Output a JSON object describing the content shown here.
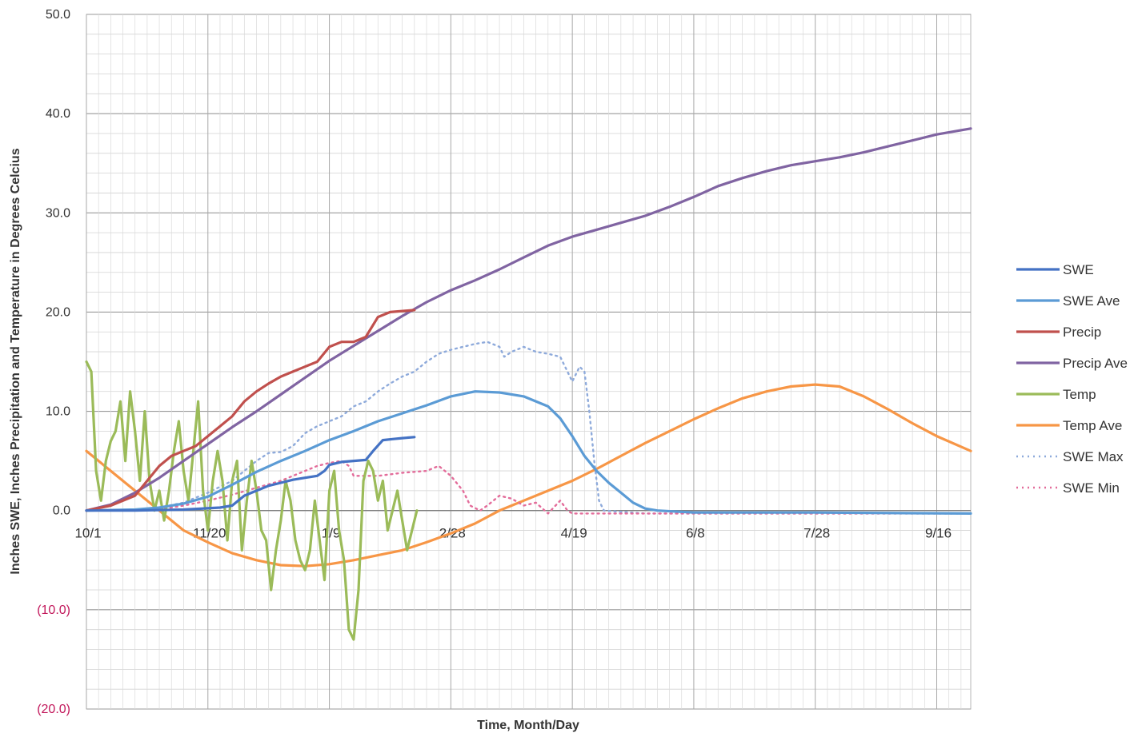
{
  "chart_data": {
    "type": "line",
    "title": "",
    "xlabel": "Time, Month/Day",
    "ylabel": "Inches SWE, Inches Precipitation and Temperature in Degrees Celcius",
    "x_domain": [
      0,
      364
    ],
    "ylim": [
      -20,
      50
    ],
    "y_ticks": [
      {
        "value": 50,
        "label": "50.0",
        "negative": false
      },
      {
        "value": 40,
        "label": "40.0",
        "negative": false
      },
      {
        "value": 30,
        "label": "30.0",
        "negative": false
      },
      {
        "value": 20,
        "label": "20.0",
        "negative": false
      },
      {
        "value": 10,
        "label": "10.0",
        "negative": false
      },
      {
        "value": 0,
        "label": "0.0",
        "negative": false
      },
      {
        "value": -10,
        "label": "(10.0)",
        "negative": true
      },
      {
        "value": -20,
        "label": "(20.0)",
        "negative": true
      }
    ],
    "x_ticks": [
      {
        "day": 0,
        "label": "10/1"
      },
      {
        "day": 50,
        "label": "11/20"
      },
      {
        "day": 100,
        "label": "1/9"
      },
      {
        "day": 150,
        "label": "2/28"
      },
      {
        "day": 200,
        "label": "4/19"
      },
      {
        "day": 250,
        "label": "6/8"
      },
      {
        "day": 300,
        "label": "7/28"
      },
      {
        "day": 350,
        "label": "9/16"
      }
    ],
    "grid": true,
    "legend_position": "right",
    "series": [
      {
        "name": "SWE",
        "color": "#4472c4",
        "dashed": false,
        "points": [
          [
            0,
            0
          ],
          [
            20,
            0
          ],
          [
            40,
            0.1
          ],
          [
            55,
            0.3
          ],
          [
            60,
            0.5
          ],
          [
            65,
            1.5
          ],
          [
            70,
            2.0
          ],
          [
            75,
            2.5
          ],
          [
            80,
            2.8
          ],
          [
            85,
            3.1
          ],
          [
            90,
            3.3
          ],
          [
            95,
            3.5
          ],
          [
            98,
            4.0
          ],
          [
            100,
            4.6
          ],
          [
            105,
            4.9
          ],
          [
            110,
            5.0
          ],
          [
            115,
            5.1
          ],
          [
            118,
            6.0
          ],
          [
            122,
            7.1
          ],
          [
            126,
            7.2
          ],
          [
            130,
            7.3
          ],
          [
            135,
            7.4
          ]
        ]
      },
      {
        "name": "SWE Ave",
        "color": "#5b9bd5",
        "dashed": false,
        "points": [
          [
            0,
            0
          ],
          [
            20,
            0.1
          ],
          [
            30,
            0.3
          ],
          [
            40,
            0.7
          ],
          [
            50,
            1.4
          ],
          [
            60,
            2.6
          ],
          [
            70,
            3.9
          ],
          [
            80,
            5.0
          ],
          [
            90,
            6.0
          ],
          [
            100,
            7.1
          ],
          [
            110,
            8.0
          ],
          [
            120,
            9.0
          ],
          [
            130,
            9.8
          ],
          [
            140,
            10.6
          ],
          [
            150,
            11.5
          ],
          [
            160,
            12.0
          ],
          [
            170,
            11.9
          ],
          [
            180,
            11.5
          ],
          [
            190,
            10.5
          ],
          [
            195,
            9.3
          ],
          [
            200,
            7.5
          ],
          [
            205,
            5.5
          ],
          [
            210,
            4.0
          ],
          [
            215,
            2.8
          ],
          [
            220,
            1.8
          ],
          [
            225,
            0.8
          ],
          [
            230,
            0.2
          ],
          [
            235,
            0
          ],
          [
            250,
            -0.2
          ],
          [
            300,
            -0.2
          ],
          [
            364,
            -0.3
          ]
        ]
      },
      {
        "name": "Precip",
        "color": "#c0504d",
        "dashed": false,
        "points": [
          [
            0,
            0
          ],
          [
            10,
            0.5
          ],
          [
            20,
            1.5
          ],
          [
            30,
            4.5
          ],
          [
            35,
            5.5
          ],
          [
            40,
            6.0
          ],
          [
            45,
            6.5
          ],
          [
            50,
            7.5
          ],
          [
            55,
            8.5
          ],
          [
            60,
            9.5
          ],
          [
            65,
            11.0
          ],
          [
            70,
            12.0
          ],
          [
            75,
            12.8
          ],
          [
            80,
            13.5
          ],
          [
            85,
            14.0
          ],
          [
            90,
            14.5
          ],
          [
            95,
            15.0
          ],
          [
            100,
            16.5
          ],
          [
            105,
            17.0
          ],
          [
            110,
            17.0
          ],
          [
            115,
            17.5
          ],
          [
            120,
            19.5
          ],
          [
            125,
            20.0
          ],
          [
            135,
            20.2
          ]
        ]
      },
      {
        "name": "Precip Ave",
        "color": "#8064a2",
        "dashed": false,
        "points": [
          [
            0,
            0
          ],
          [
            10,
            0.6
          ],
          [
            20,
            1.8
          ],
          [
            30,
            3.3
          ],
          [
            40,
            5.0
          ],
          [
            50,
            6.7
          ],
          [
            60,
            8.4
          ],
          [
            70,
            10.0
          ],
          [
            80,
            11.7
          ],
          [
            90,
            13.4
          ],
          [
            100,
            15.1
          ],
          [
            110,
            16.6
          ],
          [
            120,
            18.1
          ],
          [
            130,
            19.6
          ],
          [
            140,
            21.0
          ],
          [
            150,
            22.2
          ],
          [
            160,
            23.2
          ],
          [
            170,
            24.3
          ],
          [
            180,
            25.5
          ],
          [
            190,
            26.7
          ],
          [
            200,
            27.6
          ],
          [
            210,
            28.3
          ],
          [
            220,
            29.0
          ],
          [
            230,
            29.7
          ],
          [
            240,
            30.6
          ],
          [
            250,
            31.6
          ],
          [
            260,
            32.7
          ],
          [
            270,
            33.5
          ],
          [
            280,
            34.2
          ],
          [
            290,
            34.8
          ],
          [
            300,
            35.2
          ],
          [
            310,
            35.6
          ],
          [
            320,
            36.1
          ],
          [
            330,
            36.7
          ],
          [
            340,
            37.3
          ],
          [
            350,
            37.9
          ],
          [
            364,
            38.5
          ]
        ]
      },
      {
        "name": "Temp",
        "color": "#9bbb59",
        "dashed": false,
        "points": [
          [
            0,
            15
          ],
          [
            2,
            14
          ],
          [
            4,
            4
          ],
          [
            6,
            1
          ],
          [
            8,
            5
          ],
          [
            10,
            7
          ],
          [
            12,
            8
          ],
          [
            14,
            11
          ],
          [
            16,
            5
          ],
          [
            18,
            12
          ],
          [
            20,
            8
          ],
          [
            22,
            3
          ],
          [
            24,
            10
          ],
          [
            26,
            3
          ],
          [
            28,
            0
          ],
          [
            30,
            2
          ],
          [
            32,
            -1
          ],
          [
            34,
            2
          ],
          [
            36,
            6
          ],
          [
            38,
            9
          ],
          [
            40,
            4
          ],
          [
            42,
            1
          ],
          [
            44,
            6
          ],
          [
            46,
            11
          ],
          [
            48,
            2
          ],
          [
            50,
            -2
          ],
          [
            52,
            3
          ],
          [
            54,
            6
          ],
          [
            56,
            3
          ],
          [
            58,
            -3
          ],
          [
            60,
            3
          ],
          [
            62,
            5
          ],
          [
            64,
            -4
          ],
          [
            66,
            1
          ],
          [
            68,
            5
          ],
          [
            70,
            2
          ],
          [
            72,
            -2
          ],
          [
            74,
            -3
          ],
          [
            76,
            -8
          ],
          [
            78,
            -4
          ],
          [
            80,
            -1
          ],
          [
            82,
            3
          ],
          [
            84,
            1
          ],
          [
            86,
            -3
          ],
          [
            88,
            -5
          ],
          [
            90,
            -6
          ],
          [
            92,
            -4
          ],
          [
            94,
            1
          ],
          [
            96,
            -3
          ],
          [
            98,
            -7
          ],
          [
            100,
            2
          ],
          [
            102,
            4
          ],
          [
            104,
            -2
          ],
          [
            106,
            -5
          ],
          [
            108,
            -12
          ],
          [
            110,
            -13
          ],
          [
            112,
            -8
          ],
          [
            114,
            3
          ],
          [
            116,
            5
          ],
          [
            118,
            4
          ],
          [
            120,
            1
          ],
          [
            122,
            3
          ],
          [
            124,
            -2
          ],
          [
            126,
            0
          ],
          [
            128,
            2
          ],
          [
            130,
            -1
          ],
          [
            132,
            -4
          ],
          [
            134,
            -2
          ],
          [
            136,
            0
          ]
        ]
      },
      {
        "name": "Temp Ave",
        "color": "#f79646",
        "dashed": false,
        "points": [
          [
            0,
            6
          ],
          [
            10,
            4
          ],
          [
            20,
            2
          ],
          [
            30,
            0
          ],
          [
            40,
            -2
          ],
          [
            50,
            -3.2
          ],
          [
            60,
            -4.3
          ],
          [
            70,
            -5.0
          ],
          [
            80,
            -5.5
          ],
          [
            90,
            -5.6
          ],
          [
            100,
            -5.4
          ],
          [
            110,
            -5.0
          ],
          [
            120,
            -4.5
          ],
          [
            130,
            -4.0
          ],
          [
            140,
            -3.2
          ],
          [
            150,
            -2.3
          ],
          [
            160,
            -1.3
          ],
          [
            170,
            0.0
          ],
          [
            180,
            1.0
          ],
          [
            190,
            2.0
          ],
          [
            200,
            3.0
          ],
          [
            210,
            4.2
          ],
          [
            220,
            5.5
          ],
          [
            230,
            6.8
          ],
          [
            240,
            8.0
          ],
          [
            250,
            9.2
          ],
          [
            260,
            10.3
          ],
          [
            270,
            11.3
          ],
          [
            280,
            12.0
          ],
          [
            290,
            12.5
          ],
          [
            300,
            12.7
          ],
          [
            310,
            12.5
          ],
          [
            320,
            11.5
          ],
          [
            330,
            10.2
          ],
          [
            340,
            8.8
          ],
          [
            350,
            7.5
          ],
          [
            364,
            6.0
          ]
        ]
      },
      {
        "name": "SWE Max",
        "color": "#8eaadb",
        "dashed": true,
        "points": [
          [
            0,
            0
          ],
          [
            20,
            0
          ],
          [
            30,
            0.3
          ],
          [
            40,
            0.8
          ],
          [
            50,
            1.8
          ],
          [
            60,
            3.0
          ],
          [
            65,
            4.0
          ],
          [
            70,
            5.0
          ],
          [
            75,
            5.8
          ],
          [
            80,
            5.9
          ],
          [
            85,
            6.5
          ],
          [
            90,
            7.8
          ],
          [
            95,
            8.5
          ],
          [
            100,
            9.0
          ],
          [
            105,
            9.5
          ],
          [
            110,
            10.5
          ],
          [
            115,
            11.0
          ],
          [
            120,
            12.0
          ],
          [
            125,
            12.8
          ],
          [
            130,
            13.5
          ],
          [
            135,
            14.0
          ],
          [
            140,
            15.0
          ],
          [
            145,
            15.8
          ],
          [
            150,
            16.2
          ],
          [
            155,
            16.5
          ],
          [
            160,
            16.8
          ],
          [
            165,
            17.0
          ],
          [
            170,
            16.5
          ],
          [
            172,
            15.5
          ],
          [
            175,
            16.0
          ],
          [
            180,
            16.5
          ],
          [
            185,
            16.0
          ],
          [
            190,
            15.8
          ],
          [
            195,
            15.5
          ],
          [
            198,
            14.0
          ],
          [
            200,
            13.0
          ],
          [
            203,
            14.5
          ],
          [
            205,
            14.0
          ],
          [
            207,
            10.0
          ],
          [
            209,
            5.0
          ],
          [
            211,
            1.0
          ],
          [
            213,
            0
          ],
          [
            230,
            -0.3
          ],
          [
            364,
            -0.3
          ]
        ]
      },
      {
        "name": "SWE Min",
        "color": "#e36c9a",
        "dashed": true,
        "points": [
          [
            0,
            0
          ],
          [
            30,
            0.1
          ],
          [
            40,
            0.5
          ],
          [
            50,
            1.0
          ],
          [
            60,
            1.6
          ],
          [
            70,
            2.3
          ],
          [
            80,
            3.0
          ],
          [
            90,
            4.0
          ],
          [
            95,
            4.5
          ],
          [
            100,
            4.8
          ],
          [
            105,
            5.0
          ],
          [
            108,
            4.5
          ],
          [
            110,
            3.5
          ],
          [
            120,
            3.5
          ],
          [
            130,
            3.8
          ],
          [
            140,
            4.0
          ],
          [
            145,
            4.5
          ],
          [
            150,
            3.5
          ],
          [
            155,
            2.0
          ],
          [
            158,
            0.5
          ],
          [
            162,
            0
          ],
          [
            165,
            0.5
          ],
          [
            170,
            1.5
          ],
          [
            175,
            1.2
          ],
          [
            180,
            0.5
          ],
          [
            185,
            0.8
          ],
          [
            190,
            -0.3
          ],
          [
            195,
            1.0
          ],
          [
            198,
            0
          ],
          [
            200,
            -0.3
          ],
          [
            364,
            -0.3
          ]
        ]
      }
    ]
  }
}
